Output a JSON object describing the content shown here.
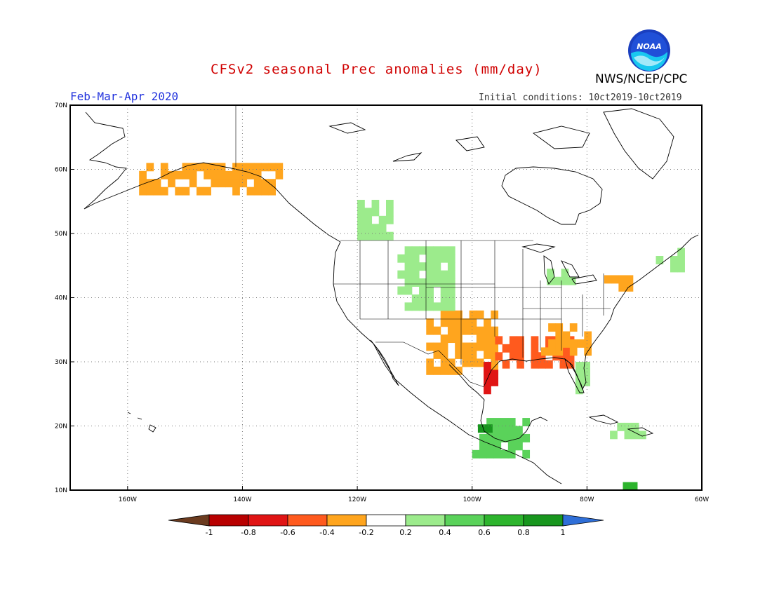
{
  "header": {
    "title": "CFSv2 seasonal Prec anomalies (mm/day)",
    "period": "Feb-Mar-Apr 2020",
    "initial_conditions": "Initial conditions: 10ct2019-10ct2019",
    "agency": "NWS/NCEP/CPC",
    "logo_text": "NOAA"
  },
  "map": {
    "lon_ticks": [
      {
        "lon": -160,
        "label": "160W"
      },
      {
        "lon": -140,
        "label": "140W"
      },
      {
        "lon": -120,
        "label": "120W"
      },
      {
        "lon": -100,
        "label": "100W"
      },
      {
        "lon": -80,
        "label": "80W"
      },
      {
        "lon": -60,
        "label": "60W"
      }
    ],
    "lat_ticks": [
      {
        "lat": 70,
        "label": "70N"
      },
      {
        "lat": 60,
        "label": "60N"
      },
      {
        "lat": 50,
        "label": "50N"
      },
      {
        "lat": 40,
        "label": "40N"
      },
      {
        "lat": 30,
        "label": "30N"
      },
      {
        "lat": 20,
        "label": "20N"
      },
      {
        "lat": 10,
        "label": "10N"
      }
    ],
    "lon_range": [
      -170,
      -60
    ],
    "lat_range": [
      10,
      70
    ],
    "grid": true
  },
  "colorbar": {
    "labels": [
      "-1",
      "-0.8",
      "-0.6",
      "-0.4",
      "-0.2",
      "0.2",
      "0.4",
      "0.6",
      "0.8",
      "1"
    ],
    "colors": [
      "#6b3b1f",
      "#b80000",
      "#e01414",
      "#ff5a1e",
      "#ffa51e",
      "#ffffff",
      "#9ceb8c",
      "#5ad25a",
      "#2db42d",
      "#18961e",
      "#2f6fd8"
    ]
  },
  "anomaly_regions": [
    {
      "name": "south-central-us-dry",
      "lon": [
        -108,
        -96
      ],
      "lat": [
        28,
        37
      ],
      "value": -0.3
    },
    {
      "name": "gulf-coast-dry",
      "lon": [
        -96,
        -83
      ],
      "lat": [
        29,
        34
      ],
      "value": -0.5
    },
    {
      "name": "southeast-dry",
      "lon": [
        -88,
        -80
      ],
      "lat": [
        31,
        35
      ],
      "value": -0.3
    },
    {
      "name": "texas-coast-strong-dry",
      "lon": [
        -98,
        -96
      ],
      "lat": [
        25,
        30
      ],
      "value": -0.7
    },
    {
      "name": "northeast-dry",
      "lon": [
        -77,
        -72
      ],
      "lat": [
        41,
        43
      ],
      "value": -0.3
    },
    {
      "name": "alaska-south-coast-dry",
      "lon": [
        -158,
        -134
      ],
      "lat": [
        56,
        61
      ],
      "value": -0.3
    },
    {
      "name": "florida-wet",
      "lon": [
        -82,
        -80
      ],
      "lat": [
        25,
        30
      ],
      "value": 0.3
    },
    {
      "name": "mexico-wet",
      "lon": [
        -100,
        -91
      ],
      "lat": [
        15,
        21
      ],
      "value": 0.4
    },
    {
      "name": "mexico-strong-wet",
      "lon": [
        -99,
        -97
      ],
      "lat": [
        19,
        20
      ],
      "value": 0.9
    },
    {
      "name": "rockies-wet",
      "lon": [
        -113,
        -104
      ],
      "lat": [
        38,
        47
      ],
      "value": 0.3
    },
    {
      "name": "bc-wet",
      "lon": [
        -120,
        -114
      ],
      "lat": [
        49,
        55
      ],
      "value": 0.3
    },
    {
      "name": "caribbean-wet",
      "lon": [
        -76,
        -70
      ],
      "lat": [
        18,
        20
      ],
      "value": 0.3
    },
    {
      "name": "colombia-wet",
      "lon": [
        -75,
        -72
      ],
      "lat": [
        10,
        11
      ],
      "value": 0.6
    },
    {
      "name": "great-lakes-wet",
      "lon": [
        -87,
        -82
      ],
      "lat": [
        42,
        44
      ],
      "value": 0.3
    },
    {
      "name": "maritimes-wet",
      "lon": [
        -68,
        -64
      ],
      "lat": [
        44,
        47
      ],
      "value": 0.3
    }
  ]
}
